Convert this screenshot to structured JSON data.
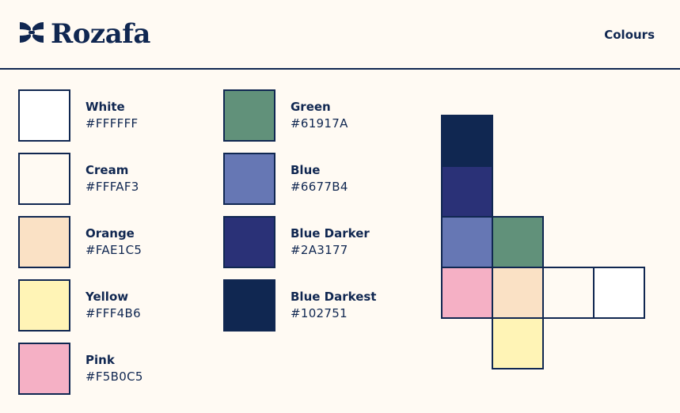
{
  "header": {
    "logo_text": "Rozafa",
    "title": "Colours"
  },
  "palette": [
    {
      "name": "White",
      "hex": "#FFFFFF",
      "color": "#FFFFFF"
    },
    {
      "name": "Cream",
      "hex": "#FFFAF3",
      "color": "#FFFAF3"
    },
    {
      "name": "Orange",
      "hex": "#FAE1C5",
      "color": "#FAE1C5"
    },
    {
      "name": "Yellow",
      "hex": "#FFF4B6",
      "color": "#FFF4B6"
    },
    {
      "name": "Pink",
      "hex": "#F5B0C5",
      "color": "#F5B0C5"
    },
    {
      "name": "Green",
      "hex": "#61917A",
      "color": "#61917A"
    },
    {
      "name": "Blue",
      "hex": "#6677B4",
      "color": "#6677B4"
    },
    {
      "name": "Blue Darker",
      "hex": "#2A3177",
      "color": "#2A3177"
    },
    {
      "name": "Blue Darkest",
      "hex": "#102751",
      "color": "#102751"
    }
  ],
  "mosaic": {
    "tiles": [
      "#102751",
      "#2A3177",
      "#6677B4",
      "#61917A",
      "#F5B0C5",
      "#FAE1C5",
      "#FFFAF3",
      "#FFFFFF",
      "#FFF4B6"
    ]
  }
}
